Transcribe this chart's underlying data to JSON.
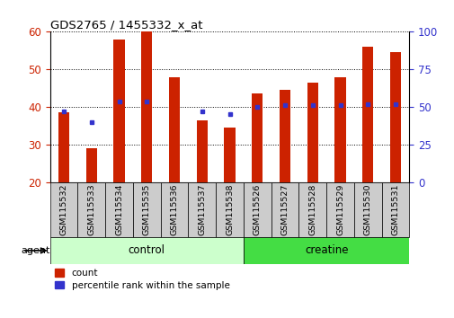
{
  "title": "GDS2765 / 1455332_x_at",
  "samples": [
    "GSM115532",
    "GSM115533",
    "GSM115534",
    "GSM115535",
    "GSM115536",
    "GSM115537",
    "GSM115538",
    "GSM115526",
    "GSM115527",
    "GSM115528",
    "GSM115529",
    "GSM115530",
    "GSM115531"
  ],
  "counts": [
    38.5,
    29.0,
    58.0,
    60.0,
    48.0,
    36.5,
    34.5,
    43.5,
    44.5,
    46.5,
    48.0,
    56.0,
    54.5
  ],
  "percentile_values": [
    38.8,
    36.0,
    41.5,
    41.5,
    null,
    38.8,
    38.0,
    40.0,
    40.5,
    40.5,
    40.5,
    40.8,
    40.8
  ],
  "groups": [
    "control",
    "control",
    "control",
    "control",
    "control",
    "control",
    "control",
    "creatine",
    "creatine",
    "creatine",
    "creatine",
    "creatine",
    "creatine"
  ],
  "bar_color": "#CC2200",
  "dot_color": "#3333CC",
  "ylim_left": [
    20,
    60
  ],
  "yticks_left": [
    20,
    30,
    40,
    50,
    60
  ],
  "ylim_right": [
    0,
    100
  ],
  "yticks_right": [
    0,
    25,
    50,
    75,
    100
  ],
  "control_color": "#CCFFCC",
  "creatine_color": "#44DD44",
  "tick_box_color": "#CCCCCC",
  "bg_color": "#FFFFFF",
  "left_axis_color": "#CC2200",
  "right_axis_color": "#3333CC"
}
